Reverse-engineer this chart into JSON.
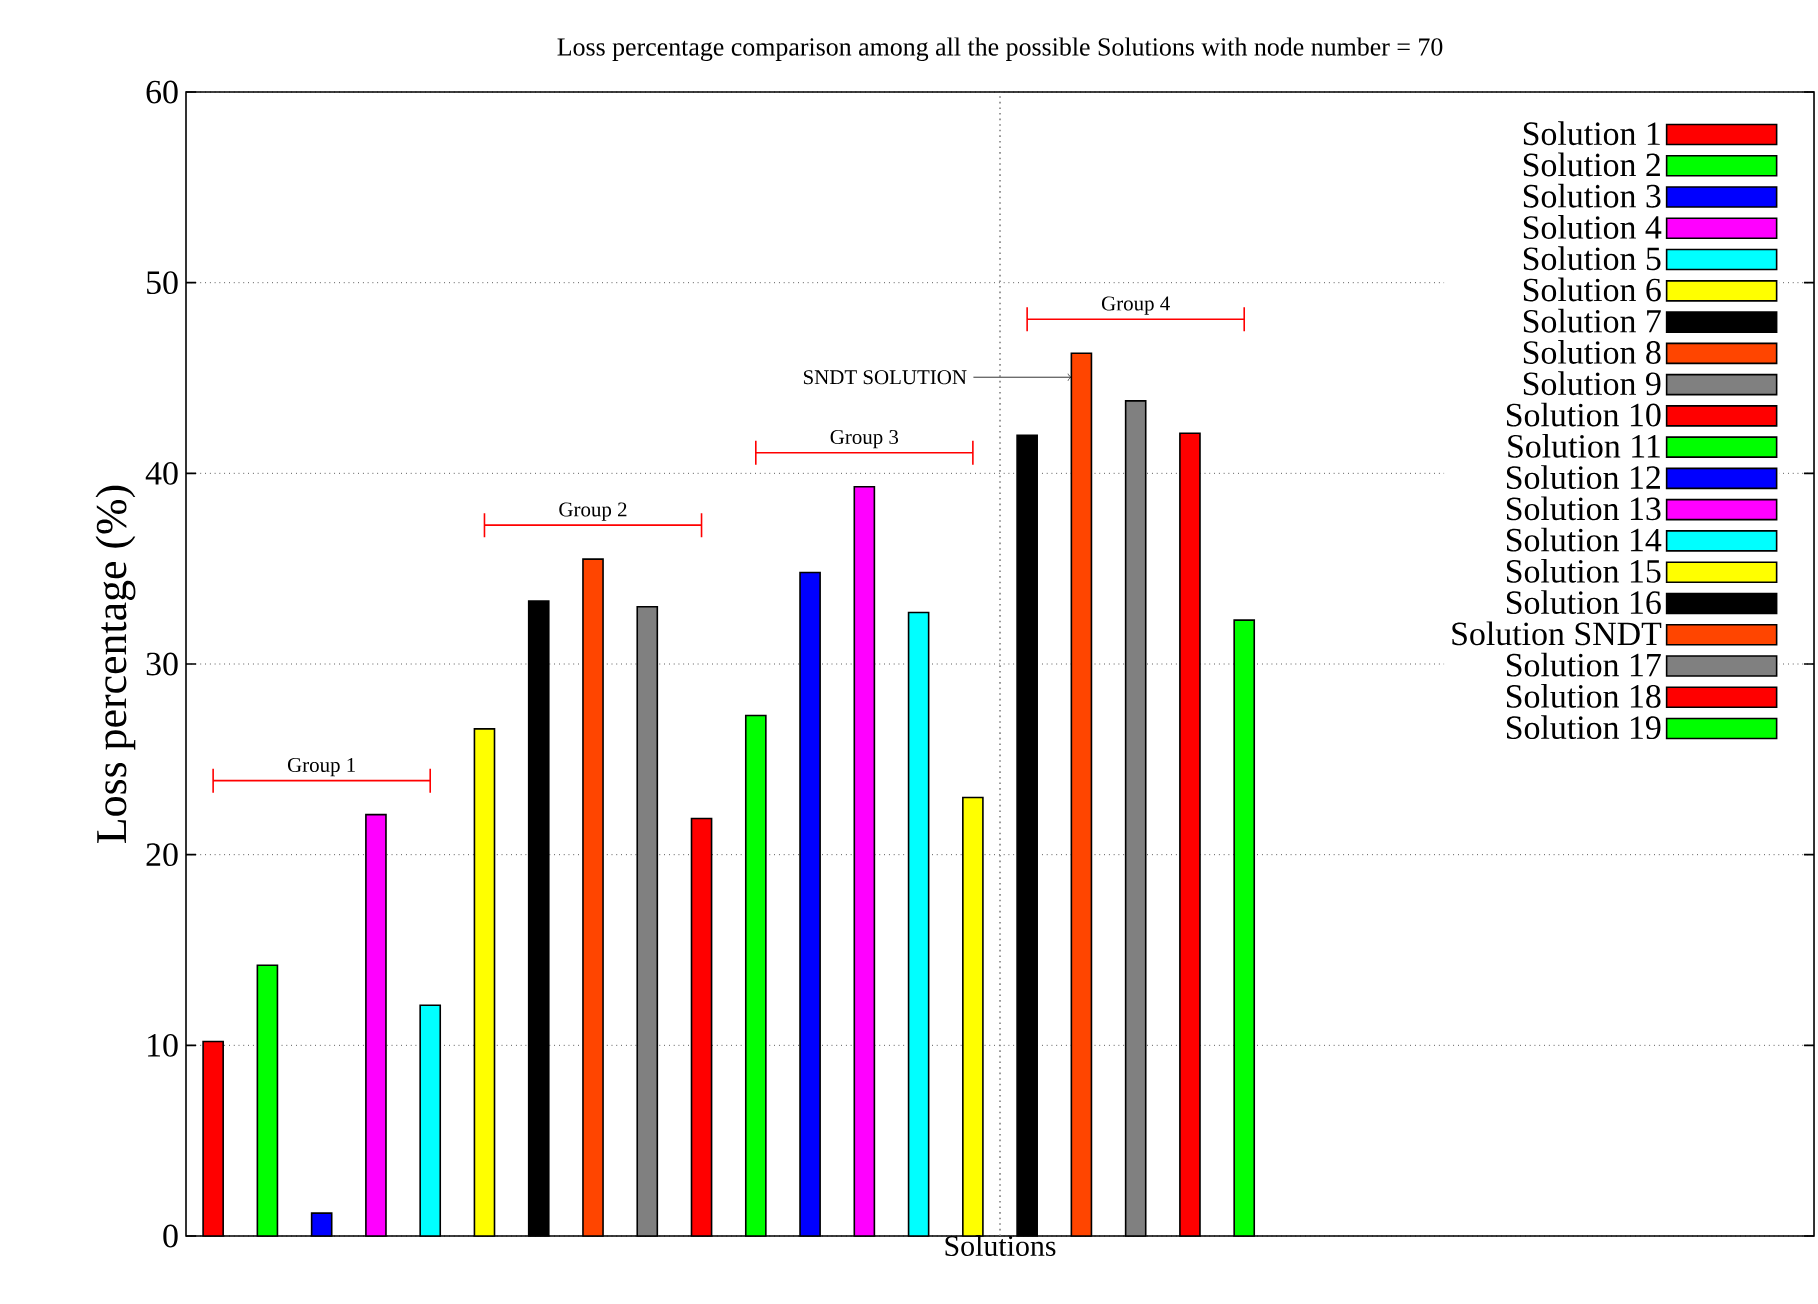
{
  "chart_data": {
    "type": "bar",
    "title": "Loss percentage comparison among all the possible Solutions with node number = 70",
    "xlabel": "Solutions",
    "ylabel": "Loss percentage (%)",
    "categories": [
      null,
      null,
      null,
      null,
      null,
      null,
      null,
      null,
      null,
      null,
      null,
      null,
      null,
      null,
      null,
      null,
      null,
      null,
      null,
      null,
      null,
      null,
      null,
      null,
      null,
      null,
      null,
      null,
      null,
      null
    ],
    "ylim": [
      0,
      60
    ],
    "yticks": [
      0,
      10,
      20,
      30,
      40,
      50,
      60
    ],
    "grid": "y",
    "tick_labels": "y",
    "legend": "top right",
    "series": [
      {
        "name": "Solution 1",
        "color": "#ff0000",
        "values": [
          10.2,
          null,
          null,
          null,
          null,
          null,
          null,
          null,
          null,
          null,
          null,
          null,
          null,
          null,
          null,
          null,
          null,
          null,
          null,
          null,
          null,
          null,
          null,
          null,
          null,
          null,
          null,
          null,
          null,
          null
        ]
      },
      {
        "name": "Solution 2",
        "color": "#00ff00",
        "values": [
          null,
          14.2,
          null,
          null,
          null,
          null,
          null,
          null,
          null,
          null,
          null,
          null,
          null,
          null,
          null,
          null,
          null,
          null,
          null,
          null,
          null,
          null,
          null,
          null,
          null,
          null,
          null,
          null,
          null,
          null
        ]
      },
      {
        "name": "Solution 3",
        "color": "#0000ff",
        "values": [
          null,
          null,
          1.2,
          null,
          null,
          null,
          null,
          null,
          null,
          null,
          null,
          null,
          null,
          null,
          null,
          null,
          null,
          null,
          null,
          null,
          null,
          null,
          null,
          null,
          null,
          null,
          null,
          null,
          null,
          null
        ]
      },
      {
        "name": "Solution 4",
        "color": "#ff00ff",
        "values": [
          null,
          null,
          null,
          22.1,
          null,
          null,
          null,
          null,
          null,
          null,
          null,
          null,
          null,
          null,
          null,
          null,
          null,
          null,
          null,
          null,
          null,
          null,
          null,
          null,
          null,
          null,
          null,
          null,
          null,
          null
        ]
      },
      {
        "name": "Solution 5",
        "color": "#00ffff",
        "values": [
          null,
          null,
          null,
          null,
          12.1,
          null,
          null,
          null,
          null,
          null,
          null,
          null,
          null,
          null,
          null,
          null,
          null,
          null,
          null,
          null,
          null,
          null,
          null,
          null,
          null,
          null,
          null,
          null,
          null,
          null
        ]
      },
      {
        "name": "Solution 6",
        "color": "#ffff00",
        "values": [
          null,
          null,
          null,
          null,
          null,
          26.6,
          null,
          null,
          null,
          null,
          null,
          null,
          null,
          null,
          null,
          null,
          null,
          null,
          null,
          null,
          null,
          null,
          null,
          null,
          null,
          null,
          null,
          null,
          null,
          null
        ]
      },
      {
        "name": "Solution 7",
        "color": "#000000",
        "values": [
          null,
          null,
          null,
          null,
          null,
          null,
          33.3,
          null,
          null,
          null,
          null,
          null,
          null,
          null,
          null,
          null,
          null,
          null,
          null,
          null,
          null,
          null,
          null,
          null,
          null,
          null,
          null,
          null,
          null,
          null
        ]
      },
      {
        "name": "Solution 8",
        "color": "#ff4500",
        "values": [
          null,
          null,
          null,
          null,
          null,
          null,
          null,
          35.5,
          null,
          null,
          null,
          null,
          null,
          null,
          null,
          null,
          null,
          null,
          null,
          null,
          null,
          null,
          null,
          null,
          null,
          null,
          null,
          null,
          null,
          null
        ]
      },
      {
        "name": "Solution 9",
        "color": "#808080",
        "values": [
          null,
          null,
          null,
          null,
          null,
          null,
          null,
          null,
          33.0,
          null,
          null,
          null,
          null,
          null,
          null,
          null,
          null,
          null,
          null,
          null,
          null,
          null,
          null,
          null,
          null,
          null,
          null,
          null,
          null,
          null
        ]
      },
      {
        "name": "Solution 10",
        "color": "#ff0000",
        "values": [
          null,
          null,
          null,
          null,
          null,
          null,
          null,
          null,
          null,
          21.9,
          null,
          null,
          null,
          null,
          null,
          null,
          null,
          null,
          null,
          null,
          null,
          null,
          null,
          null,
          null,
          null,
          null,
          null,
          null,
          null
        ]
      },
      {
        "name": "Solution 11",
        "color": "#00ff00",
        "values": [
          null,
          null,
          null,
          null,
          null,
          null,
          null,
          null,
          null,
          null,
          27.3,
          null,
          null,
          null,
          null,
          null,
          null,
          null,
          null,
          null,
          null,
          null,
          null,
          null,
          null,
          null,
          null,
          null,
          null,
          null
        ]
      },
      {
        "name": "Solution 12",
        "color": "#0000ff",
        "values": [
          null,
          null,
          null,
          null,
          null,
          null,
          null,
          null,
          null,
          null,
          null,
          34.8,
          null,
          null,
          null,
          null,
          null,
          null,
          null,
          null,
          null,
          null,
          null,
          null,
          null,
          null,
          null,
          null,
          null,
          null
        ]
      },
      {
        "name": "Solution 13",
        "color": "#ff00ff",
        "values": [
          null,
          null,
          null,
          null,
          null,
          null,
          null,
          null,
          null,
          null,
          null,
          null,
          39.3,
          null,
          null,
          null,
          null,
          null,
          null,
          null,
          null,
          null,
          null,
          null,
          null,
          null,
          null,
          null,
          null,
          null
        ]
      },
      {
        "name": "Solution 14",
        "color": "#00ffff",
        "values": [
          null,
          null,
          null,
          null,
          null,
          null,
          null,
          null,
          null,
          null,
          null,
          null,
          null,
          32.7,
          null,
          null,
          null,
          null,
          null,
          null,
          null,
          null,
          null,
          null,
          null,
          null,
          null,
          null,
          null,
          null
        ]
      },
      {
        "name": "Solution 15",
        "color": "#ffff00",
        "values": [
          null,
          null,
          null,
          null,
          null,
          null,
          null,
          null,
          null,
          null,
          null,
          null,
          null,
          null,
          23.0,
          null,
          null,
          null,
          null,
          null,
          null,
          null,
          null,
          null,
          null,
          null,
          null,
          null,
          null,
          null
        ]
      },
      {
        "name": "Solution 16",
        "color": "#000000",
        "values": [
          null,
          null,
          null,
          null,
          null,
          null,
          null,
          null,
          null,
          null,
          null,
          null,
          null,
          null,
          null,
          42.0,
          null,
          null,
          null,
          null,
          null,
          null,
          null,
          null,
          null,
          null,
          null,
          null,
          null,
          null
        ]
      },
      {
        "name": "Solution SNDT",
        "color": "#ff4500",
        "values": [
          null,
          null,
          null,
          null,
          null,
          null,
          null,
          null,
          null,
          null,
          null,
          null,
          null,
          null,
          null,
          null,
          46.3,
          null,
          null,
          null,
          null,
          null,
          null,
          null,
          null,
          null,
          null,
          null,
          null,
          null
        ]
      },
      {
        "name": "Solution 17",
        "color": "#808080",
        "values": [
          null,
          null,
          null,
          null,
          null,
          null,
          null,
          null,
          null,
          null,
          null,
          null,
          null,
          null,
          null,
          null,
          null,
          43.8,
          null,
          null,
          null,
          null,
          null,
          null,
          null,
          null,
          null,
          null,
          null,
          null
        ]
      },
      {
        "name": "Solution 18",
        "color": "#ff0000",
        "values": [
          null,
          null,
          null,
          null,
          null,
          null,
          null,
          null,
          null,
          null,
          null,
          null,
          null,
          null,
          null,
          null,
          null,
          null,
          42.1,
          null,
          null,
          null,
          null,
          null,
          null,
          null,
          null,
          null,
          null,
          null
        ]
      },
      {
        "name": "Solution 19",
        "color": "#00ff00",
        "values": [
          null,
          null,
          null,
          null,
          null,
          null,
          null,
          null,
          null,
          null,
          null,
          null,
          null,
          null,
          null,
          null,
          null,
          null,
          null,
          32.3,
          null,
          null,
          null,
          null,
          null,
          null,
          null,
          null,
          null,
          null
        ]
      }
    ],
    "annotations": [
      "Group 1",
      "Group 2",
      "Group 3",
      "Group 4",
      "SNDT SOLUTION"
    ]
  }
}
